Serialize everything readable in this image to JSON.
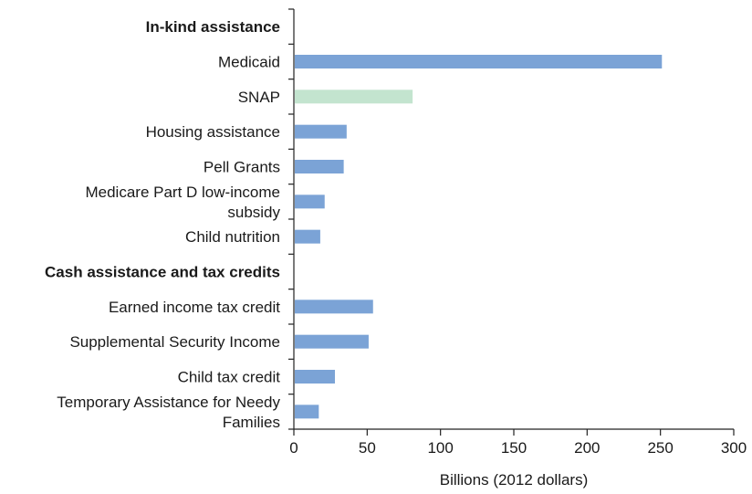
{
  "chart_data": {
    "type": "bar",
    "orientation": "horizontal",
    "xlabel": "Billions (2012 dollars)",
    "xlim": [
      0,
      300
    ],
    "xticks": [
      "0",
      "50",
      "100",
      "150",
      "200",
      "250",
      "300"
    ],
    "grid": false,
    "rows": [
      {
        "kind": "header",
        "label": "In-kind assistance"
      },
      {
        "kind": "bar",
        "label": [
          "Medicaid"
        ],
        "value": 251,
        "color": "#7ba3d6"
      },
      {
        "kind": "bar",
        "label": [
          "SNAP"
        ],
        "value": 81,
        "color": "#c3e4cf"
      },
      {
        "kind": "bar",
        "label": [
          "Housing assistance"
        ],
        "value": 36,
        "color": "#7ba3d6"
      },
      {
        "kind": "bar",
        "label": [
          "Pell Grants"
        ],
        "value": 34,
        "color": "#7ba3d6"
      },
      {
        "kind": "bar",
        "label": [
          "Medicare Part D low-income",
          "subsidy"
        ],
        "value": 21,
        "color": "#7ba3d6"
      },
      {
        "kind": "bar",
        "label": [
          "Child nutrition"
        ],
        "value": 18,
        "color": "#7ba3d6"
      },
      {
        "kind": "header",
        "label": "Cash assistance and tax credits"
      },
      {
        "kind": "bar",
        "label": [
          "Earned income tax credit"
        ],
        "value": 54,
        "color": "#7ba3d6"
      },
      {
        "kind": "bar",
        "label": [
          "Supplemental Security Income"
        ],
        "value": 51,
        "color": "#7ba3d6"
      },
      {
        "kind": "bar",
        "label": [
          "Child tax credit"
        ],
        "value": 28,
        "color": "#7ba3d6"
      },
      {
        "kind": "bar",
        "label": [
          "Temporary Assistance for Needy",
          "Families"
        ],
        "value": 17,
        "color": "#7ba3d6"
      }
    ]
  }
}
